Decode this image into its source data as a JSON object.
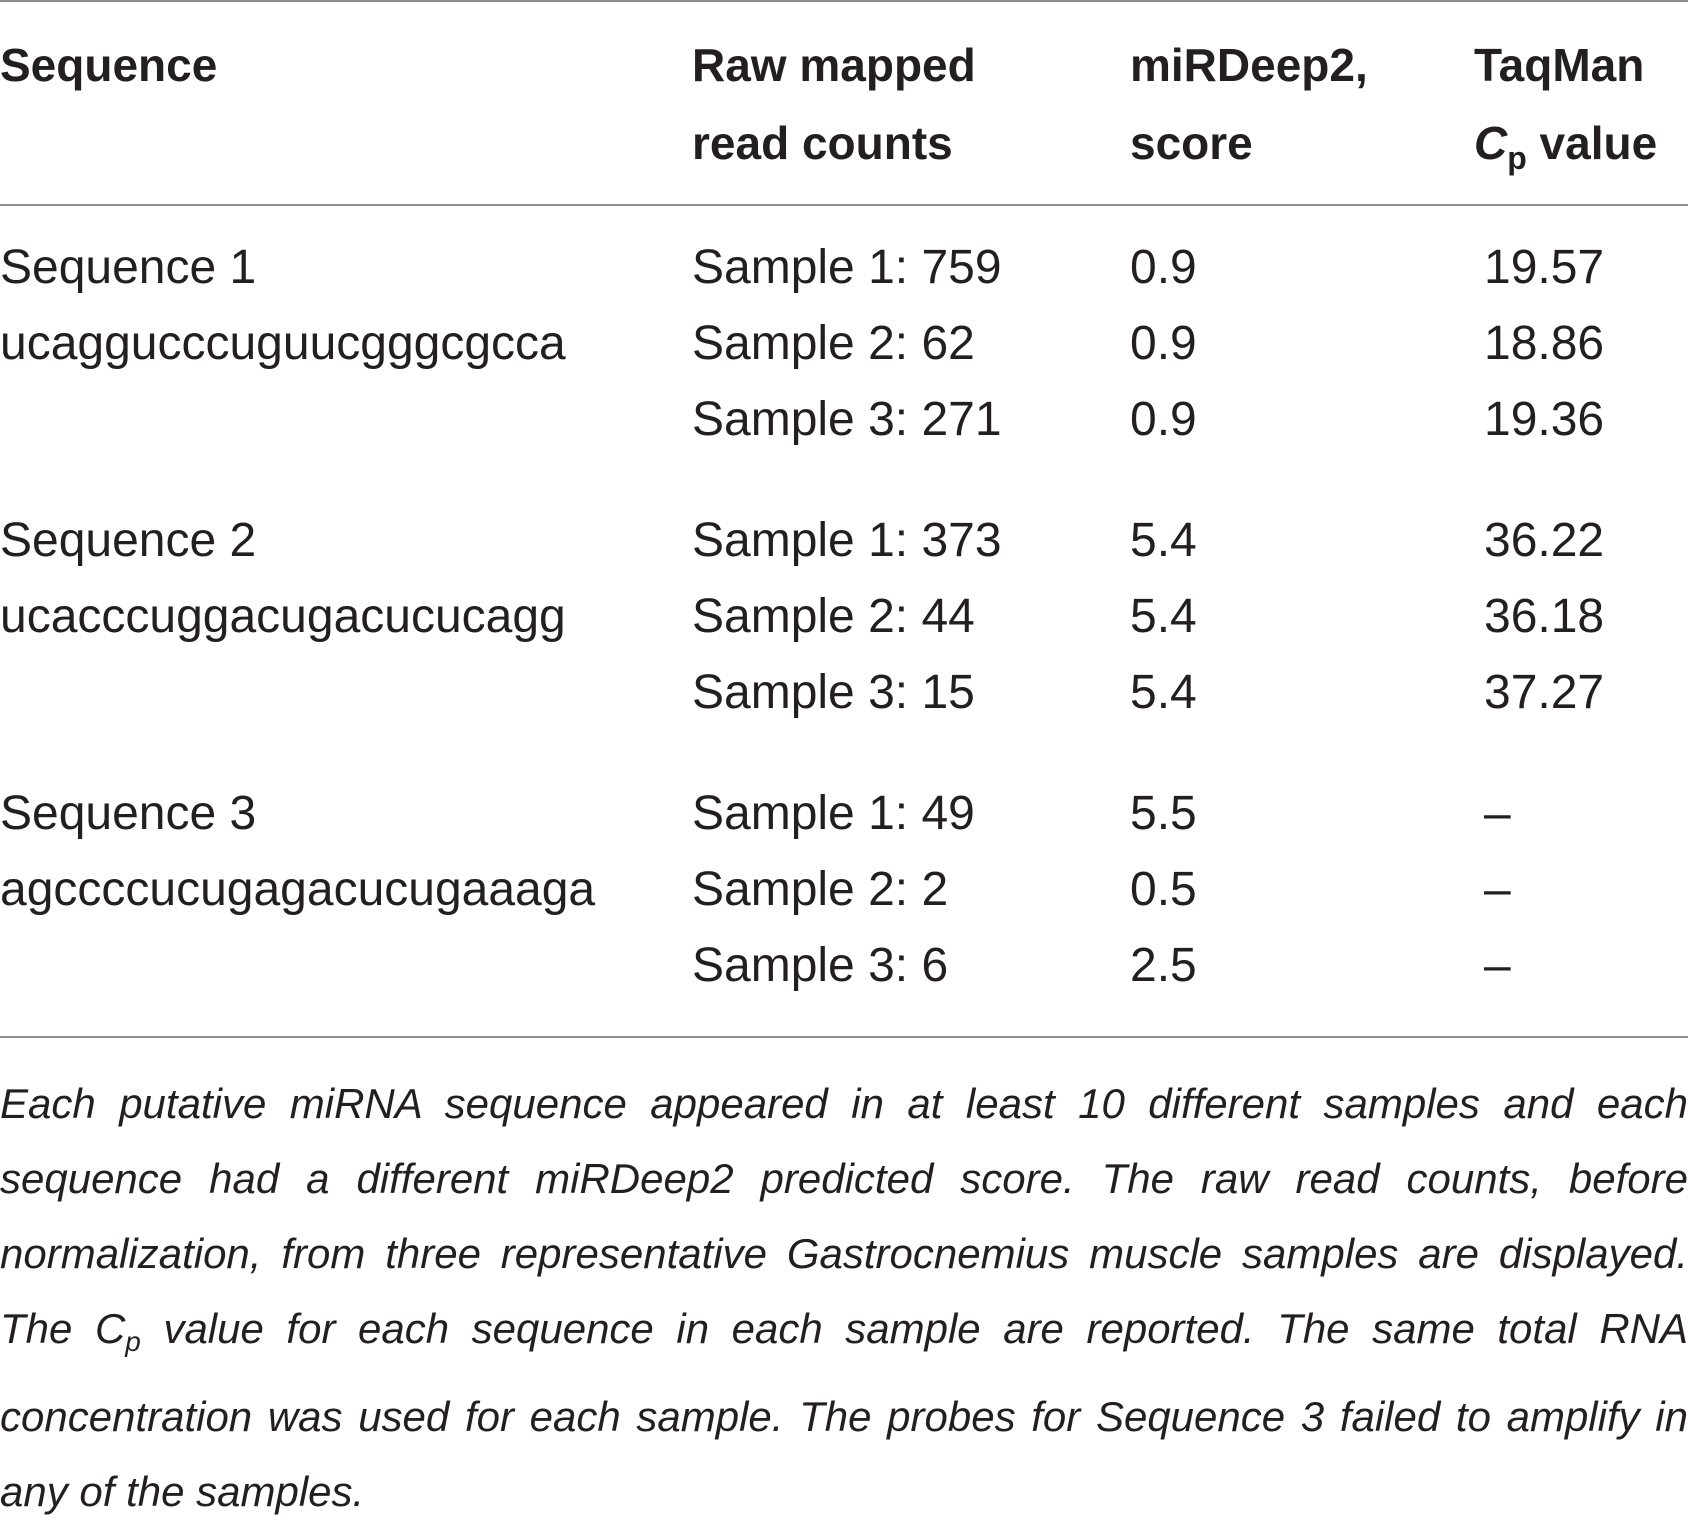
{
  "header": {
    "col1": "Sequence",
    "col2_line1": "Raw mapped",
    "col2_line2": "read counts",
    "col3_line1": "miRDeep2,",
    "col3_line2": "score",
    "col4_line1": "TaqMan",
    "col4_cp_main": "C",
    "col4_cp_sub": "p",
    "col4_cp_rest": " value"
  },
  "rows": [
    {
      "name": "Sequence 1",
      "seq": "ucaggucccuguucgggcgcca",
      "samples": [
        {
          "count": "Sample 1: 759",
          "score": "0.9",
          "cp": "19.57"
        },
        {
          "count": "Sample 2: 62",
          "score": "0.9",
          "cp": "18.86"
        },
        {
          "count": "Sample 3: 271",
          "score": "0.9",
          "cp": "19.36"
        }
      ]
    },
    {
      "name": "Sequence 2",
      "seq": "ucacccuggacugacucucagg",
      "samples": [
        {
          "count": "Sample 1: 373",
          "score": "5.4",
          "cp": "36.22"
        },
        {
          "count": "Sample 2: 44",
          "score": "5.4",
          "cp": "36.18"
        },
        {
          "count": "Sample 3: 15",
          "score": "5.4",
          "cp": "37.27"
        }
      ]
    },
    {
      "name": "Sequence 3",
      "seq": "agccccucugagacucugaaaga",
      "samples": [
        {
          "count": "Sample 1: 49",
          "score": "5.5",
          "cp": "–"
        },
        {
          "count": "Sample 2: 2",
          "score": "0.5",
          "cp": "–"
        },
        {
          "count": "Sample 3: 6",
          "score": "2.5",
          "cp": "–"
        }
      ]
    }
  ],
  "footnote": {
    "part1": "Each putative miRNA sequence appeared in at least 10 different samples and each sequence had a different miRDeep2 predicted score. The raw read counts, before normalization, from three representative Gastrocnemius muscle samples are displayed. The ",
    "cp_main": "C",
    "cp_sub": "p",
    "part2": " value for each sequence in each sample are reported. The same total RNA concentration was used for each sample. The probes for Sequence 3 failed to amplify in any of the samples."
  }
}
